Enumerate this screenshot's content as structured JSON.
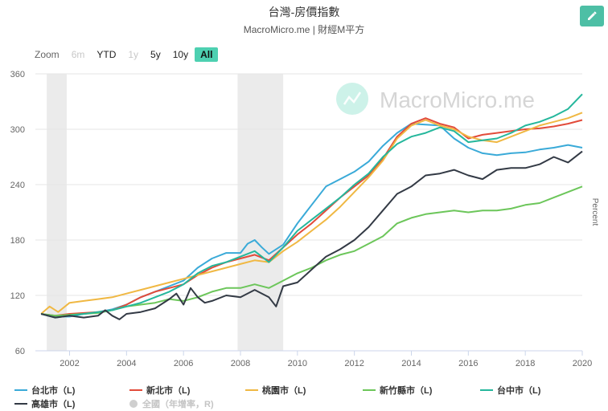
{
  "header": {
    "title": "台灣-房價指數",
    "subtitle": "MacroMicro.me | 財經M平方",
    "edit_icon": "pencil-icon"
  },
  "zoom": {
    "label": "Zoom",
    "buttons": [
      {
        "label": "6m",
        "state": "disabled"
      },
      {
        "label": "YTD",
        "state": "normal"
      },
      {
        "label": "1y",
        "state": "disabled"
      },
      {
        "label": "5y",
        "state": "normal"
      },
      {
        "label": "10y",
        "state": "normal"
      },
      {
        "label": "All",
        "state": "active"
      }
    ]
  },
  "watermark": {
    "text": "MacroMicro.me",
    "icon": "macromicro-logo-icon"
  },
  "legend": {
    "items": [
      {
        "label": "台北市（L)",
        "color": "#3aaad8",
        "type": "line"
      },
      {
        "label": "新北市（L)",
        "color": "#e24b3a",
        "type": "line"
      },
      {
        "label": "桃園市（L)",
        "color": "#f0b843",
        "type": "line"
      },
      {
        "label": "新竹縣市（L)",
        "color": "#6cc65a",
        "type": "line"
      },
      {
        "label": "台中市（L)",
        "color": "#25b79c",
        "type": "line"
      },
      {
        "label": "高雄市（L)",
        "color": "#333a45",
        "type": "line"
      },
      {
        "label": "全國（年增率，R)",
        "color": "#cfcfcf",
        "type": "dot",
        "hidden": true
      }
    ]
  },
  "chart_data": {
    "type": "line",
    "ylabel": "Percent",
    "ylim": [
      60,
      360
    ],
    "yticks": [
      60,
      120,
      180,
      240,
      300,
      360
    ],
    "xlim": [
      2000.8,
      2020.0
    ],
    "xticks": [
      2002,
      2004,
      2006,
      2008,
      2010,
      2012,
      2014,
      2016,
      2018,
      2020
    ],
    "grid": true,
    "legend_position": "bottom",
    "shaded_ranges": [
      [
        2001.2,
        2001.9
      ],
      [
        2007.9,
        2009.5
      ]
    ],
    "series": [
      {
        "name": "台北市（L)",
        "color": "#3aaad8",
        "x": [
          2001.0,
          2001.5,
          2002.0,
          2002.5,
          2003.0,
          2003.5,
          2004.0,
          2004.5,
          2005.0,
          2005.5,
          2006.0,
          2006.5,
          2007.0,
          2007.5,
          2008.0,
          2008.25,
          2008.5,
          2008.75,
          2009.0,
          2009.5,
          2010.0,
          2010.5,
          2011.0,
          2011.5,
          2012.0,
          2012.5,
          2013.0,
          2013.5,
          2014.0,
          2014.5,
          2015.0,
          2015.5,
          2016.0,
          2016.5,
          2017.0,
          2017.5,
          2018.0,
          2018.5,
          2019.0,
          2019.5,
          2020.0
        ],
        "y": [
          100,
          97,
          97,
          100,
          102,
          105,
          110,
          118,
          124,
          130,
          136,
          150,
          160,
          166,
          166,
          176,
          180,
          172,
          165,
          175,
          198,
          218,
          238,
          246,
          254,
          265,
          282,
          296,
          306,
          305,
          304,
          290,
          280,
          274,
          272,
          274,
          275,
          278,
          280,
          283,
          280
        ]
      },
      {
        "name": "新北市（L)",
        "color": "#e24b3a",
        "x": [
          2001.0,
          2001.5,
          2002.0,
          2002.5,
          2003.0,
          2003.5,
          2004.0,
          2004.5,
          2005.0,
          2005.5,
          2006.0,
          2006.5,
          2007.0,
          2007.5,
          2008.0,
          2008.5,
          2009.0,
          2009.5,
          2010.0,
          2010.5,
          2011.0,
          2011.5,
          2012.0,
          2012.5,
          2013.0,
          2013.5,
          2014.0,
          2014.5,
          2015.0,
          2015.5,
          2016.0,
          2016.5,
          2017.0,
          2017.5,
          2018.0,
          2018.5,
          2019.0,
          2019.5,
          2020.0
        ],
        "y": [
          100,
          98,
          100,
          101,
          102,
          104,
          110,
          118,
          124,
          128,
          132,
          142,
          150,
          156,
          160,
          164,
          158,
          172,
          186,
          198,
          212,
          226,
          238,
          250,
          268,
          292,
          306,
          312,
          306,
          302,
          290,
          294,
          296,
          298,
          300,
          301,
          303,
          306,
          310
        ]
      },
      {
        "name": "桃園市（L)",
        "color": "#f0b843",
        "x": [
          2001.0,
          2001.3,
          2001.6,
          2002.0,
          2002.5,
          2003.0,
          2003.5,
          2004.0,
          2004.5,
          2005.0,
          2005.5,
          2006.0,
          2006.5,
          2007.0,
          2007.5,
          2008.0,
          2008.5,
          2009.0,
          2009.5,
          2010.0,
          2010.5,
          2011.0,
          2011.5,
          2012.0,
          2012.5,
          2013.0,
          2013.5,
          2014.0,
          2014.5,
          2015.0,
          2015.5,
          2016.0,
          2016.5,
          2017.0,
          2017.5,
          2018.0,
          2018.5,
          2019.0,
          2019.5,
          2020.0
        ],
        "y": [
          100,
          108,
          102,
          112,
          114,
          116,
          118,
          122,
          126,
          130,
          134,
          138,
          142,
          146,
          150,
          154,
          158,
          156,
          168,
          178,
          190,
          202,
          216,
          232,
          248,
          266,
          290,
          304,
          310,
          304,
          300,
          292,
          288,
          286,
          292,
          298,
          304,
          308,
          312,
          318
        ]
      },
      {
        "name": "新竹縣市（L)",
        "color": "#6cc65a",
        "x": [
          2001.0,
          2001.5,
          2002.0,
          2002.5,
          2003.0,
          2003.5,
          2004.0,
          2004.5,
          2005.0,
          2005.5,
          2006.0,
          2006.5,
          2007.0,
          2007.5,
          2008.0,
          2008.5,
          2009.0,
          2009.5,
          2010.0,
          2010.5,
          2011.0,
          2011.5,
          2012.0,
          2012.5,
          2013.0,
          2013.5,
          2014.0,
          2014.5,
          2015.0,
          2015.5,
          2016.0,
          2016.5,
          2017.0,
          2017.5,
          2018.0,
          2018.5,
          2019.0,
          2019.5,
          2020.0
        ],
        "y": [
          100,
          98,
          99,
          100,
          101,
          104,
          108,
          110,
          112,
          116,
          114,
          118,
          124,
          128,
          128,
          132,
          128,
          136,
          144,
          150,
          158,
          164,
          168,
          176,
          184,
          198,
          204,
          208,
          210,
          212,
          210,
          212,
          212,
          214,
          218,
          220,
          226,
          232,
          238
        ]
      },
      {
        "name": "台中市（L)",
        "color": "#25b79c",
        "x": [
          2001.0,
          2001.5,
          2002.0,
          2002.5,
          2003.0,
          2003.5,
          2004.0,
          2004.5,
          2005.0,
          2005.5,
          2006.0,
          2006.5,
          2007.0,
          2007.5,
          2008.0,
          2008.5,
          2009.0,
          2009.5,
          2010.0,
          2010.5,
          2011.0,
          2011.5,
          2012.0,
          2012.5,
          2013.0,
          2013.5,
          2014.0,
          2014.5,
          2015.0,
          2015.5,
          2016.0,
          2016.5,
          2017.0,
          2017.5,
          2018.0,
          2018.5,
          2019.0,
          2019.5,
          2020.0
        ],
        "y": [
          100,
          96,
          98,
          100,
          102,
          104,
          108,
          112,
          118,
          124,
          132,
          144,
          152,
          156,
          162,
          168,
          156,
          172,
          190,
          202,
          214,
          226,
          240,
          252,
          270,
          284,
          292,
          296,
          302,
          298,
          286,
          288,
          290,
          296,
          304,
          308,
          314,
          322,
          338
        ]
      },
      {
        "name": "高雄市（L)",
        "color": "#333a45",
        "x": [
          2001.0,
          2001.5,
          2002.0,
          2002.5,
          2003.0,
          2003.25,
          2003.5,
          2003.75,
          2004.0,
          2004.5,
          2005.0,
          2005.5,
          2005.75,
          2006.0,
          2006.25,
          2006.5,
          2006.75,
          2007.0,
          2007.5,
          2008.0,
          2008.5,
          2009.0,
          2009.25,
          2009.5,
          2010.0,
          2010.5,
          2011.0,
          2011.5,
          2012.0,
          2012.5,
          2013.0,
          2013.5,
          2014.0,
          2014.5,
          2015.0,
          2015.5,
          2016.0,
          2016.5,
          2017.0,
          2017.5,
          2018.0,
          2018.5,
          2019.0,
          2019.5,
          2020.0
        ],
        "y": [
          100,
          96,
          98,
          96,
          98,
          104,
          98,
          94,
          100,
          102,
          106,
          116,
          122,
          110,
          128,
          118,
          112,
          114,
          120,
          118,
          126,
          118,
          108,
          130,
          134,
          148,
          162,
          170,
          180,
          194,
          212,
          230,
          238,
          250,
          252,
          256,
          250,
          246,
          256,
          258,
          258,
          262,
          270,
          264,
          276
        ]
      }
    ]
  }
}
